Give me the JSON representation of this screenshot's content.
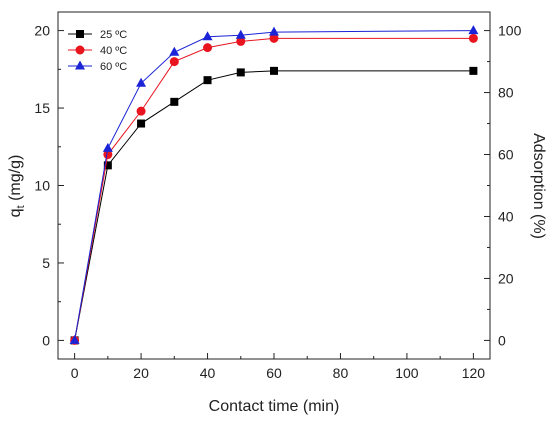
{
  "chart_data": {
    "type": "line",
    "title": "",
    "xlabel": "Contact time (min)",
    "ylabel_left_main": "q",
    "ylabel_left_sub": "t",
    "ylabel_left_unit": " (mg/g)",
    "ylabel_right": "Adsorption (%)",
    "xlim": [
      -5,
      125
    ],
    "ylim_left": [
      -1.2,
      21.2
    ],
    "ylim_right": [
      -6,
      106
    ],
    "x_ticks": [
      0,
      20,
      40,
      60,
      80,
      100,
      120
    ],
    "x_tick_labels": [
      "0",
      "20",
      "40",
      "60",
      "80",
      "100",
      "120"
    ],
    "y_left_ticks": [
      0,
      5,
      10,
      15,
      20
    ],
    "y_left_tick_labels": [
      "0",
      "5",
      "10",
      "15",
      "20"
    ],
    "y_right_ticks": [
      0,
      20,
      40,
      60,
      80,
      100
    ],
    "y_right_tick_labels": [
      "0",
      "20",
      "40",
      "60",
      "80",
      "100"
    ],
    "x": [
      0,
      10,
      20,
      30,
      40,
      50,
      60,
      120
    ],
    "series": [
      {
        "name": "25 ºC",
        "color": "#000000",
        "marker": "square",
        "values": [
          0,
          11.3,
          14.0,
          15.4,
          16.8,
          17.3,
          17.4,
          17.4
        ]
      },
      {
        "name": "40 ºC",
        "color": "#e8141e",
        "marker": "circle",
        "values": [
          0,
          12.0,
          14.8,
          18.0,
          18.9,
          19.3,
          19.5,
          19.5
        ]
      },
      {
        "name": "60 ºC",
        "color": "#1a23d6",
        "marker": "triangle",
        "values": [
          0,
          12.4,
          16.6,
          18.6,
          19.6,
          19.7,
          19.9,
          20.0
        ]
      }
    ],
    "legend_position": "top-left",
    "grid": false
  }
}
